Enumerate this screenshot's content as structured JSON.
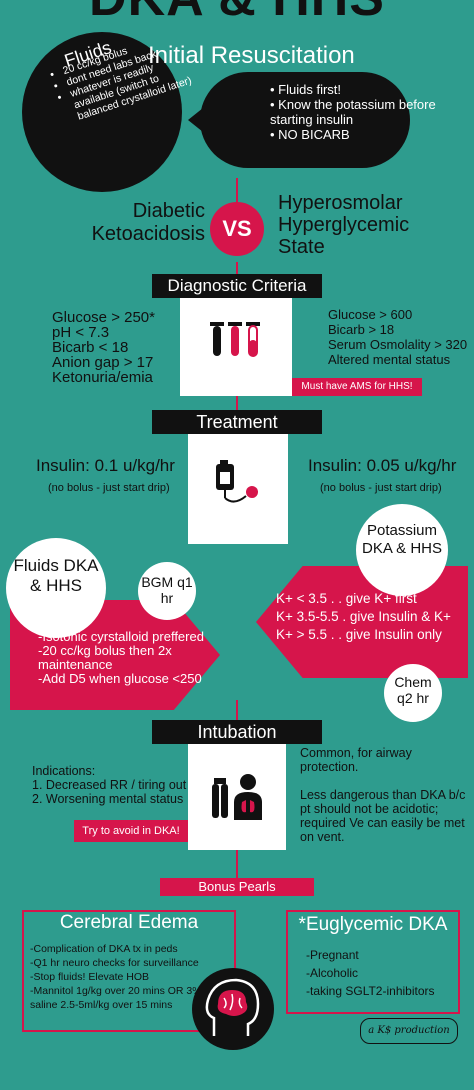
{
  "header": {
    "title": "DKA & HHS"
  },
  "resus": {
    "fluids_title": "Fluids",
    "fluids_items": [
      "20 cc/kg bolus",
      "dont need labs back",
      "whatever is readily available (switch to balanced crystalloid later)"
    ],
    "title": "Initial Resuscitation",
    "items": [
      "Fluids first!",
      "Know the potassium before starting insulin",
      "NO BICARB"
    ]
  },
  "versus": {
    "left": "Diabetic Ketoacidosis",
    "vs": "VS",
    "right": "Hyperosmolar Hyperglycemic State"
  },
  "diagnostic": {
    "title": "Diagnostic Criteria",
    "dka": [
      "Glucose > 250*",
      "pH < 7.3",
      "Bicarb < 18",
      "Anion gap > 17",
      "Ketonuria/emia"
    ],
    "hhs": [
      "Glucose > 600",
      "Bicarb > 18",
      "Serum Osmolality > 320",
      "Altered mental status"
    ],
    "note": "Must have AMS for HHS!"
  },
  "treatment": {
    "title": "Treatment",
    "dka_insulin": "Insulin: 0.1 u/kg/hr",
    "dka_note": "(no bolus - just start drip)",
    "hhs_insulin": "Insulin: 0.05 u/kg/hr",
    "hhs_note": "(no bolus - just start drip)"
  },
  "fluids": {
    "title": "Fluids DKA & HHS",
    "bgm": "BGM q1 hr",
    "items": [
      "-Isotonic cyrstalloid preffered",
      "-20 cc/kg bolus then 2x maintenance",
      "-Add D5 when glucose <250"
    ]
  },
  "potassium": {
    "title": "Potassium DKA & HHS",
    "items": [
      "K+ < 3.5 . . give K+ first",
      "K+ 3.5-5.5 . give Insulin & K+",
      "K+ > 5.5 . . give Insulin only"
    ],
    "chem": "Chem q2 hr"
  },
  "intubation": {
    "title": "Intubation",
    "indications": "Indications:",
    "items": [
      "1. Decreased RR / tiring out",
      "2. Worsening mental status"
    ],
    "note": "Try to avoid in DKA!",
    "right1": "Common, for airway protection.",
    "right2": "Less dangerous than DKA b/c pt should not be acidotic; required Ve can easily be met on vent."
  },
  "bonus": {
    "title": "Bonus Pearls"
  },
  "cerebral": {
    "title": "Cerebral Edema",
    "items": [
      "-Complication of DKA tx in peds",
      "-Q1 hr neuro checks for surveillance",
      "-Stop fluids! Elevate HOB",
      "-Mannitol 1g/kg over 20 mins OR 3% saline 2.5-5ml/kg over 15 mins"
    ]
  },
  "euglycemic": {
    "title": "*Euglycemic DKA",
    "items": [
      "-Pregnant",
      "-Alcoholic",
      "-taking SGLT2-inhibitors"
    ]
  },
  "footer": {
    "credit": "a K$ production"
  },
  "colors": {
    "teal": "#2e9c8e",
    "red": "#d6154b",
    "black": "#111111"
  }
}
